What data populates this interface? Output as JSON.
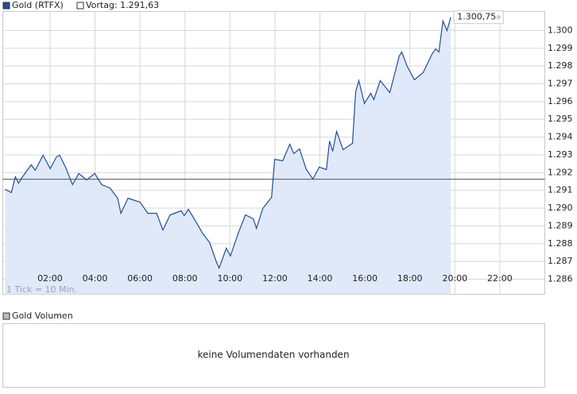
{
  "chart_data": {
    "type": "line",
    "series": [
      {
        "name": "Gold (RTFX)",
        "color": "#1f4e9c",
        "x": [
          0.0,
          0.28,
          0.46,
          0.6,
          0.78,
          1.16,
          1.34,
          1.69,
          2.01,
          2.29,
          2.43,
          2.72,
          3.0,
          3.28,
          3.63,
          3.99,
          4.3,
          4.66,
          5.01,
          5.15,
          5.47,
          6.0,
          6.35,
          6.74,
          7.02,
          7.34,
          7.83,
          7.97,
          8.15,
          8.43,
          8.78,
          9.1,
          9.38,
          9.52,
          9.84,
          10.02,
          10.37,
          10.69,
          11.04,
          11.18,
          11.46,
          11.85,
          11.99,
          12.35,
          12.66,
          12.84,
          13.09,
          13.4,
          13.69,
          13.97,
          14.29,
          14.43,
          14.57,
          14.74,
          15.03,
          15.45,
          15.59,
          15.73,
          15.98,
          16.26,
          16.4,
          16.68,
          17.11,
          17.53,
          17.64,
          17.88,
          18.2,
          18.59,
          18.98,
          19.15,
          19.29,
          19.47,
          19.65,
          19.82
        ],
        "values": [
          1291.06,
          1290.88,
          1291.77,
          1291.41,
          1291.77,
          1292.44,
          1292.13,
          1292.98,
          1292.22,
          1292.89,
          1292.98,
          1292.22,
          1291.32,
          1291.95,
          1291.59,
          1291.95,
          1291.32,
          1291.14,
          1290.56,
          1289.71,
          1290.56,
          1290.34,
          1289.71,
          1289.71,
          1288.77,
          1289.62,
          1289.85,
          1289.58,
          1289.94,
          1289.36,
          1288.6,
          1288.06,
          1287.03,
          1286.63,
          1287.75,
          1287.3,
          1288.6,
          1289.62,
          1289.4,
          1288.86,
          1289.98,
          1290.61,
          1292.75,
          1292.67,
          1293.6,
          1293.07,
          1293.34,
          1292.17,
          1291.64,
          1292.31,
          1292.17,
          1293.78,
          1293.2,
          1294.32,
          1293.29,
          1293.65,
          1296.56,
          1297.18,
          1295.89,
          1296.47,
          1296.11,
          1297.18,
          1296.51,
          1298.57,
          1298.79,
          1297.99,
          1297.23,
          1297.63,
          1298.66,
          1298.97,
          1298.79,
          1300.54,
          1300.0,
          1300.75
        ]
      }
    ],
    "reference": {
      "label": "Vortag: 1.291,63",
      "value": 1291.63
    },
    "last_value": {
      "value": 1300.75,
      "label": "1.300,75"
    },
    "annotation": "1 Tick = 10 Min.",
    "xlim": [
      -0.1,
      24
    ],
    "xticks": [
      {
        "value": 2,
        "label": "02:00"
      },
      {
        "value": 4,
        "label": "04:00"
      },
      {
        "value": 6,
        "label": "06:00"
      },
      {
        "value": 8,
        "label": "08:00"
      },
      {
        "value": 10,
        "label": "10:00"
      },
      {
        "value": 12,
        "label": "12:00"
      },
      {
        "value": 14,
        "label": "14:00"
      },
      {
        "value": 16,
        "label": "16:00"
      },
      {
        "value": 18,
        "label": "18:00"
      },
      {
        "value": 20,
        "label": "20:00"
      },
      {
        "value": 22,
        "label": "22:00"
      }
    ],
    "ylim": [
      1285.15,
      1301.07
    ],
    "yticks": [
      {
        "value": 1286,
        "label": "1.286"
      },
      {
        "value": 1287,
        "label": "1.287"
      },
      {
        "value": 1288,
        "label": "1.288"
      },
      {
        "value": 1289,
        "label": "1.289"
      },
      {
        "value": 1290,
        "label": "1.290"
      },
      {
        "value": 1291,
        "label": "1.291"
      },
      {
        "value": 1292,
        "label": "1.292"
      },
      {
        "value": 1293,
        "label": "1.293"
      },
      {
        "value": 1294,
        "label": "1.294"
      },
      {
        "value": 1295,
        "label": "1.295"
      },
      {
        "value": 1296,
        "label": "1.296"
      },
      {
        "value": 1297,
        "label": "1.297"
      },
      {
        "value": 1298,
        "label": "1.298"
      },
      {
        "value": 1299,
        "label": "1.299"
      },
      {
        "value": 1300,
        "label": "1.300"
      }
    ],
    "grid": true,
    "fill_color": "#dfe9f9",
    "reference_color": "#445566"
  },
  "volume_panel": {
    "legend": "Gold Volumen",
    "message": "keine Volumendaten vorhanden"
  }
}
